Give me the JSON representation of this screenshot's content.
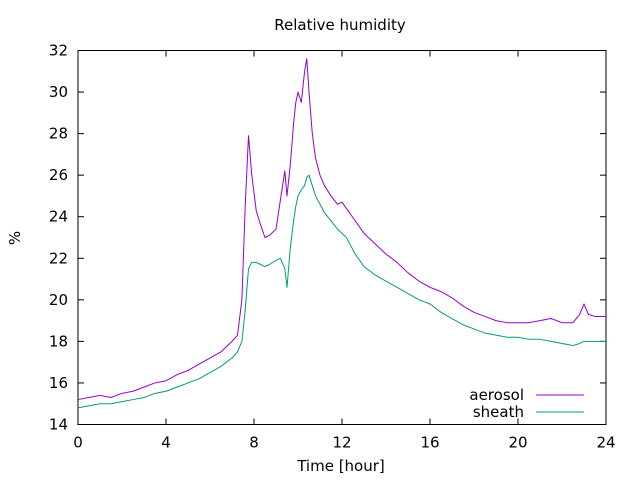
{
  "chart_data": {
    "type": "line",
    "title": "Relative humidity",
    "xlabel": "Time [hour]",
    "ylabel": "%",
    "xlim": [
      0,
      24
    ],
    "ylim": [
      14,
      32
    ],
    "xticks": [
      0,
      4,
      8,
      12,
      16,
      20,
      24
    ],
    "yticks": [
      14,
      16,
      18,
      20,
      22,
      24,
      26,
      28,
      30,
      32
    ],
    "grid": false,
    "legend_position": "bottom-right",
    "x": [
      0,
      0.5,
      1,
      1.5,
      2,
      2.5,
      3,
      3.5,
      4,
      4.5,
      5,
      5.5,
      6,
      6.5,
      7,
      7.25,
      7.45,
      7.6,
      7.75,
      7.9,
      8.1,
      8.3,
      8.5,
      8.7,
      9.0,
      9.2,
      9.4,
      9.5,
      9.65,
      9.8,
      9.9,
      10.0,
      10.15,
      10.3,
      10.4,
      10.5,
      10.65,
      10.8,
      11.0,
      11.2,
      11.5,
      11.8,
      12.0,
      12.2,
      12.4,
      12.6,
      13.0,
      13.5,
      14.0,
      14.5,
      15.0,
      15.5,
      16.0,
      16.5,
      17.0,
      17.5,
      18.0,
      18.5,
      19.0,
      19.5,
      20.0,
      20.5,
      21.0,
      21.5,
      22.0,
      22.5,
      22.8,
      23.0,
      23.2,
      23.5,
      24.0
    ],
    "series": [
      {
        "name": "aerosol",
        "color": "#9400d3",
        "values": [
          15.2,
          15.3,
          15.4,
          15.3,
          15.5,
          15.6,
          15.8,
          16.0,
          16.1,
          16.4,
          16.6,
          16.9,
          17.2,
          17.5,
          18.0,
          18.3,
          20.0,
          24.5,
          27.9,
          26.0,
          24.3,
          23.6,
          23.0,
          23.1,
          23.4,
          24.8,
          26.2,
          25.0,
          26.5,
          28.5,
          29.5,
          30.0,
          29.5,
          31.0,
          31.6,
          30.0,
          28.0,
          26.8,
          26.0,
          25.5,
          25.0,
          24.6,
          24.7,
          24.4,
          24.1,
          23.8,
          23.2,
          22.7,
          22.2,
          21.8,
          21.3,
          20.9,
          20.6,
          20.4,
          20.1,
          19.7,
          19.4,
          19.2,
          19.0,
          18.9,
          18.9,
          18.9,
          19.0,
          19.1,
          18.9,
          18.9,
          19.3,
          19.8,
          19.3,
          19.2,
          19.2
        ]
      },
      {
        "name": "sheath",
        "color": "#009e73",
        "values": [
          14.8,
          14.9,
          15.0,
          15.0,
          15.1,
          15.2,
          15.3,
          15.5,
          15.6,
          15.8,
          16.0,
          16.2,
          16.5,
          16.8,
          17.2,
          17.5,
          18.0,
          19.5,
          21.5,
          21.8,
          21.8,
          21.7,
          21.6,
          21.7,
          21.9,
          22.0,
          21.5,
          20.6,
          22.5,
          23.8,
          24.5,
          25.0,
          25.3,
          25.5,
          25.9,
          26.0,
          25.5,
          25.0,
          24.6,
          24.2,
          23.8,
          23.4,
          23.2,
          23.0,
          22.6,
          22.2,
          21.6,
          21.2,
          20.9,
          20.6,
          20.3,
          20.0,
          19.8,
          19.4,
          19.1,
          18.8,
          18.6,
          18.4,
          18.3,
          18.2,
          18.2,
          18.1,
          18.1,
          18.0,
          17.9,
          17.8,
          17.9,
          18.0,
          18.0,
          18.0,
          18.0
        ]
      }
    ]
  }
}
